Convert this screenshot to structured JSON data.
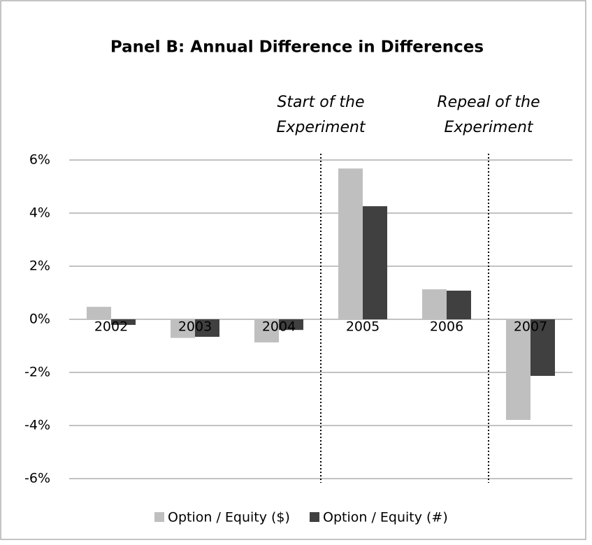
{
  "chart_data": {
    "type": "bar",
    "title": "Panel B: Annual Difference in Differences",
    "categories": [
      "2002",
      "2003",
      "2004",
      "2005",
      "2006",
      "2007"
    ],
    "series": [
      {
        "name": "Option / Equity ($)",
        "color": "#bfbfbf",
        "values": [
          0.47,
          -0.7,
          -0.87,
          5.68,
          1.13,
          -3.79
        ]
      },
      {
        "name": "Option / Equity (#)",
        "color": "#404040",
        "values": [
          -0.21,
          -0.66,
          -0.4,
          4.26,
          1.08,
          -2.13
        ]
      }
    ],
    "annotations": [
      {
        "lines": [
          "Start of the",
          "Experiment"
        ]
      },
      {
        "lines": [
          "Repeal of the",
          "Experiment"
        ]
      }
    ],
    "ylim": [
      -6,
      6
    ],
    "yticks": [
      {
        "value": -6,
        "label": "-6%"
      },
      {
        "value": -4,
        "label": "-4%"
      },
      {
        "value": -2,
        "label": "-2%"
      },
      {
        "value": 0,
        "label": "0%"
      },
      {
        "value": 2,
        "label": "2%"
      },
      {
        "value": 4,
        "label": "4%"
      },
      {
        "value": 6,
        "label": "6%"
      }
    ],
    "grid": true,
    "legend": "bottom"
  }
}
